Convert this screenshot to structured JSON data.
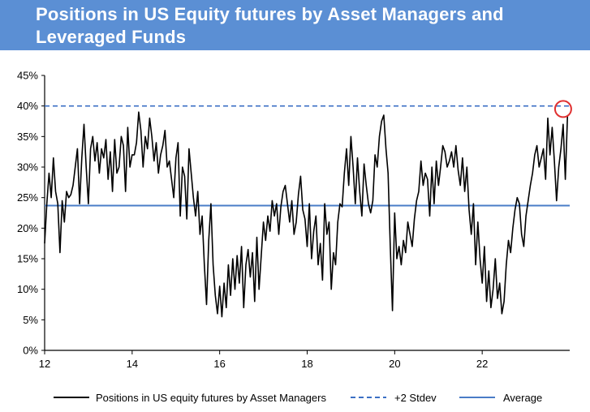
{
  "title": {
    "line1": "Positions in US Equity futures by Asset Managers and",
    "line2": "Leveraged Funds"
  },
  "colors": {
    "banner": "#5b8fd4",
    "series": "#000000",
    "stdev": "#3b6fc4",
    "average": "#4a7cc7",
    "highlight": "#e03030"
  },
  "chart_data": {
    "type": "line",
    "title": "Positions in US Equity futures by Asset Managers and Leveraged Funds",
    "xlabel": "",
    "ylabel": "",
    "xlim": [
      12,
      24.0
    ],
    "ylim": [
      0,
      45
    ],
    "x_ticks": [
      12,
      14,
      16,
      18,
      20,
      22
    ],
    "x_tick_labels": [
      "12",
      "14",
      "16",
      "18",
      "20",
      "22"
    ],
    "y_ticks": [
      0,
      5,
      10,
      15,
      20,
      25,
      30,
      35,
      40,
      45
    ],
    "y_tick_labels": [
      "0%",
      "5%",
      "10%",
      "15%",
      "20%",
      "25%",
      "30%",
      "35%",
      "40%",
      "45%"
    ],
    "grid": false,
    "legend_position": "bottom",
    "series": [
      {
        "name": "Positions in US equity futures by Asset Managers",
        "style": "solid",
        "x": [
          12.0,
          12.05,
          12.1,
          12.15,
          12.2,
          12.25,
          12.3,
          12.35,
          12.4,
          12.45,
          12.5,
          12.55,
          12.6,
          12.65,
          12.7,
          12.75,
          12.8,
          12.85,
          12.9,
          12.95,
          13.0,
          13.05,
          13.1,
          13.15,
          13.2,
          13.25,
          13.3,
          13.35,
          13.4,
          13.45,
          13.5,
          13.55,
          13.6,
          13.65,
          13.7,
          13.75,
          13.8,
          13.85,
          13.9,
          13.95,
          14.0,
          14.05,
          14.1,
          14.15,
          14.2,
          14.25,
          14.3,
          14.35,
          14.4,
          14.45,
          14.5,
          14.55,
          14.6,
          14.65,
          14.7,
          14.75,
          14.8,
          14.85,
          14.9,
          14.95,
          15.0,
          15.05,
          15.1,
          15.15,
          15.2,
          15.25,
          15.3,
          15.35,
          15.4,
          15.45,
          15.5,
          15.55,
          15.6,
          15.65,
          15.7,
          15.75,
          15.8,
          15.85,
          15.9,
          15.95,
          16.0,
          16.05,
          16.1,
          16.15,
          16.2,
          16.25,
          16.3,
          16.35,
          16.4,
          16.45,
          16.5,
          16.55,
          16.6,
          16.65,
          16.7,
          16.75,
          16.8,
          16.85,
          16.9,
          16.95,
          17.0,
          17.05,
          17.1,
          17.15,
          17.2,
          17.25,
          17.3,
          17.35,
          17.4,
          17.45,
          17.5,
          17.55,
          17.6,
          17.65,
          17.7,
          17.75,
          17.8,
          17.85,
          17.9,
          17.95,
          18.0,
          18.05,
          18.1,
          18.15,
          18.2,
          18.25,
          18.3,
          18.35,
          18.4,
          18.45,
          18.5,
          18.55,
          18.6,
          18.65,
          18.7,
          18.75,
          18.8,
          18.85,
          18.9,
          18.95,
          19.0,
          19.05,
          19.1,
          19.15,
          19.2,
          19.25,
          19.3,
          19.35,
          19.4,
          19.45,
          19.5,
          19.55,
          19.6,
          19.65,
          19.7,
          19.75,
          19.8,
          19.85,
          19.9,
          19.95,
          20.0,
          20.05,
          20.1,
          20.15,
          20.2,
          20.25,
          20.3,
          20.35,
          20.4,
          20.45,
          20.5,
          20.55,
          20.6,
          20.65,
          20.7,
          20.75,
          20.8,
          20.85,
          20.9,
          20.95,
          21.0,
          21.05,
          21.1,
          21.15,
          21.2,
          21.25,
          21.3,
          21.35,
          21.4,
          21.45,
          21.5,
          21.55,
          21.6,
          21.65,
          21.7,
          21.75,
          21.8,
          21.85,
          21.9,
          21.95,
          22.0,
          22.05,
          22.1,
          22.15,
          22.2,
          22.25,
          22.3,
          22.35,
          22.4,
          22.45,
          22.5,
          22.55,
          22.6,
          22.65,
          22.7,
          22.75,
          22.8,
          22.85,
          22.9,
          22.95,
          23.0,
          23.05,
          23.1,
          23.15,
          23.2,
          23.25,
          23.3,
          23.35,
          23.4,
          23.45,
          23.5,
          23.55,
          23.6,
          23.65,
          23.7,
          23.75,
          23.8,
          23.85,
          23.9,
          23.95
        ],
        "values": [
          17.5,
          24.0,
          29.0,
          25.0,
          31.5,
          26.0,
          24.0,
          16.0,
          24.5,
          21.0,
          26.0,
          25.0,
          25.5,
          27.0,
          30.0,
          33.0,
          24.0,
          31.5,
          37.0,
          30.0,
          24.0,
          33.0,
          35.0,
          31.0,
          34.0,
          29.0,
          33.0,
          31.5,
          34.5,
          28.0,
          32.5,
          26.0,
          34.5,
          29.0,
          30.0,
          35.0,
          33.5,
          26.0,
          36.5,
          30.0,
          32.0,
          32.0,
          34.0,
          39.0,
          36.0,
          30.0,
          35.0,
          33.0,
          38.0,
          35.0,
          31.0,
          34.0,
          29.0,
          32.0,
          33.5,
          36.0,
          30.0,
          31.0,
          28.0,
          25.0,
          31.5,
          34.0,
          22.0,
          30.0,
          28.5,
          21.5,
          33.0,
          29.0,
          25.0,
          22.0,
          26.0,
          19.0,
          22.0,
          14.0,
          7.5,
          18.0,
          24.0,
          14.0,
          9.0,
          6.0,
          10.5,
          5.5,
          11.0,
          7.0,
          14.0,
          9.0,
          15.0,
          10.0,
          15.5,
          11.0,
          17.0,
          7.0,
          14.0,
          16.5,
          12.0,
          16.0,
          8.0,
          18.5,
          10.0,
          15.5,
          21.0,
          18.0,
          22.0,
          19.5,
          24.5,
          22.0,
          24.0,
          19.0,
          23.5,
          26.0,
          27.0,
          24.0,
          21.0,
          24.5,
          19.0,
          21.0,
          25.5,
          28.5,
          23.0,
          21.5,
          17.0,
          24.0,
          15.0,
          19.5,
          22.0,
          14.0,
          17.5,
          11.5,
          24.0,
          19.0,
          21.0,
          10.0,
          16.0,
          14.0,
          21.0,
          24.0,
          23.5,
          29.0,
          33.0,
          27.0,
          35.0,
          30.0,
          24.0,
          31.5,
          26.0,
          22.0,
          30.5,
          27.0,
          24.0,
          22.5,
          24.5,
          32.0,
          30.0,
          35.0,
          37.5,
          38.5,
          33.0,
          29.0,
          17.0,
          6.5,
          22.5,
          15.0,
          17.0,
          14.0,
          18.0,
          16.0,
          21.0,
          19.0,
          17.0,
          21.5,
          24.5,
          26.0,
          31.0,
          27.0,
          29.0,
          28.0,
          22.0,
          30.0,
          24.0,
          31.0,
          27.0,
          30.0,
          33.5,
          32.5,
          30.0,
          31.0,
          32.5,
          30.0,
          33.5,
          29.5,
          27.0,
          31.5,
          26.0,
          30.0,
          23.0,
          19.0,
          24.0,
          14.0,
          21.0,
          15.0,
          11.0,
          17.0,
          8.0,
          13.0,
          7.0,
          10.0,
          15.0,
          8.5,
          11.0,
          6.0,
          8.0,
          14.0,
          18.0,
          16.0,
          20.0,
          23.0,
          25.0,
          24.0,
          19.0,
          17.0,
          22.0,
          24.5,
          27.0,
          29.0,
          32.0,
          33.5,
          30.0,
          31.5,
          33.0,
          28.0,
          38.0,
          32.0,
          36.5,
          31.0,
          24.5,
          30.0,
          33.0,
          37.0,
          28.0,
          38.5
        ]
      },
      {
        "name": "+2 Stdev",
        "style": "dashed",
        "value": 40
      },
      {
        "name": "Average",
        "style": "solid",
        "value": 23.7
      }
    ],
    "annotations": [
      {
        "type": "circle",
        "x": 23.85,
        "y": 39.5,
        "description": "highlight of latest reading"
      }
    ]
  },
  "legend": {
    "items": [
      {
        "label": "Positions in US equity futures by Asset Managers"
      },
      {
        "label": "+2 Stdev"
      },
      {
        "label": "Average"
      }
    ]
  }
}
